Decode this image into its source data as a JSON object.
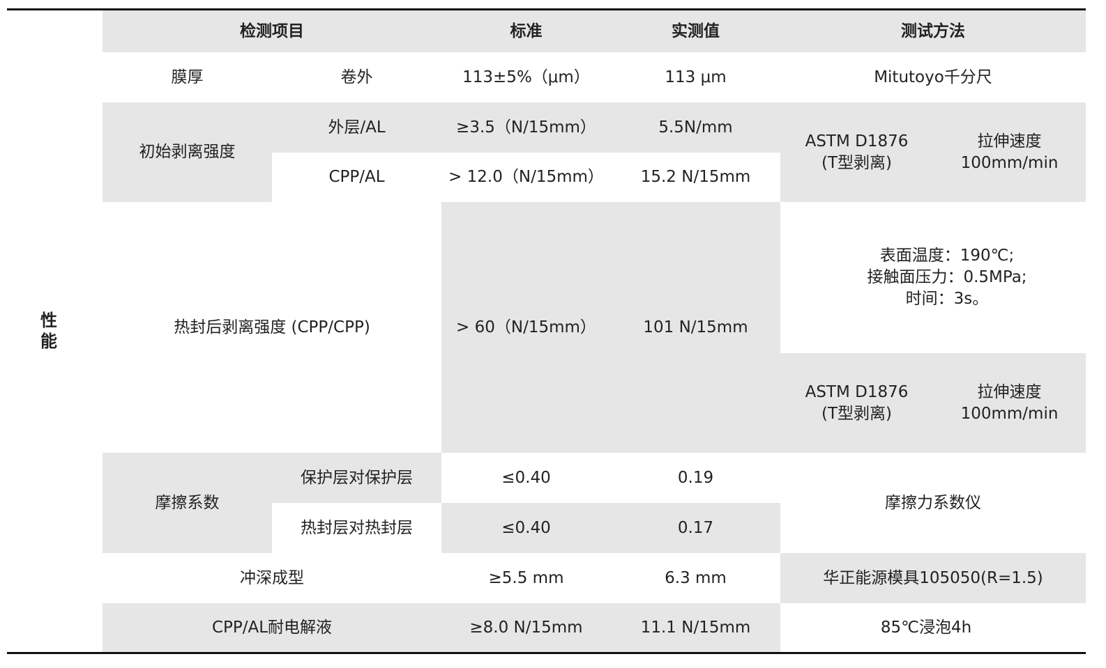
{
  "side_label": "性\n能",
  "header": {
    "item": "检测项目",
    "standard": "标准",
    "measured": "实测值",
    "method": "测试方法"
  },
  "rows": {
    "thickness": {
      "item": "膜厚",
      "sub": "卷外",
      "standard": "113±5%（μm）",
      "measured": "113 μm",
      "method": "Mitutoyo千分尺"
    },
    "initial_peel": {
      "item": "初始剥离强度",
      "outer": {
        "sub": "外层/AL",
        "standard": "≥3.5（N/15mm）",
        "measured": "5.5N/mm"
      },
      "cpp": {
        "sub": "CPP/AL",
        "standard": "> 12.0（N/15mm）",
        "measured": "15.2 N/15mm"
      },
      "method": "ASTM D1876\n(T型剥离)",
      "speed": "拉伸速度\n100mm/min"
    },
    "heat_seal_peel": {
      "item": "热封后剥离强度 (CPP/CPP)",
      "standard": "> 60（N/15mm）",
      "measured": "101 N/15mm",
      "conditions": "表面温度：190℃;\n接触面压力：0.5MPa;\n时间：3s。",
      "method": "ASTM D1876\n(T型剥离)",
      "speed": "拉伸速度\n100mm/min"
    },
    "friction": {
      "item": "摩擦系数",
      "protective": {
        "sub": "保护层对保护层",
        "standard": "≤0.40",
        "measured": "0.19"
      },
      "sealing": {
        "sub": "热封层对热封层",
        "standard": "≤0.40",
        "measured": "0.17"
      },
      "method": "摩擦力系数仪"
    },
    "deep_draw": {
      "item": "冲深成型",
      "standard": "≥5.5 mm",
      "measured": "6.3 mm",
      "method": "华正能源模具105050(R=1.5)"
    },
    "electrolyte": {
      "item": "CPP/AL耐电解液",
      "standard": "≥8.0 N/15mm",
      "measured": "11.1 N/15mm",
      "method": "85℃浸泡4h"
    }
  }
}
